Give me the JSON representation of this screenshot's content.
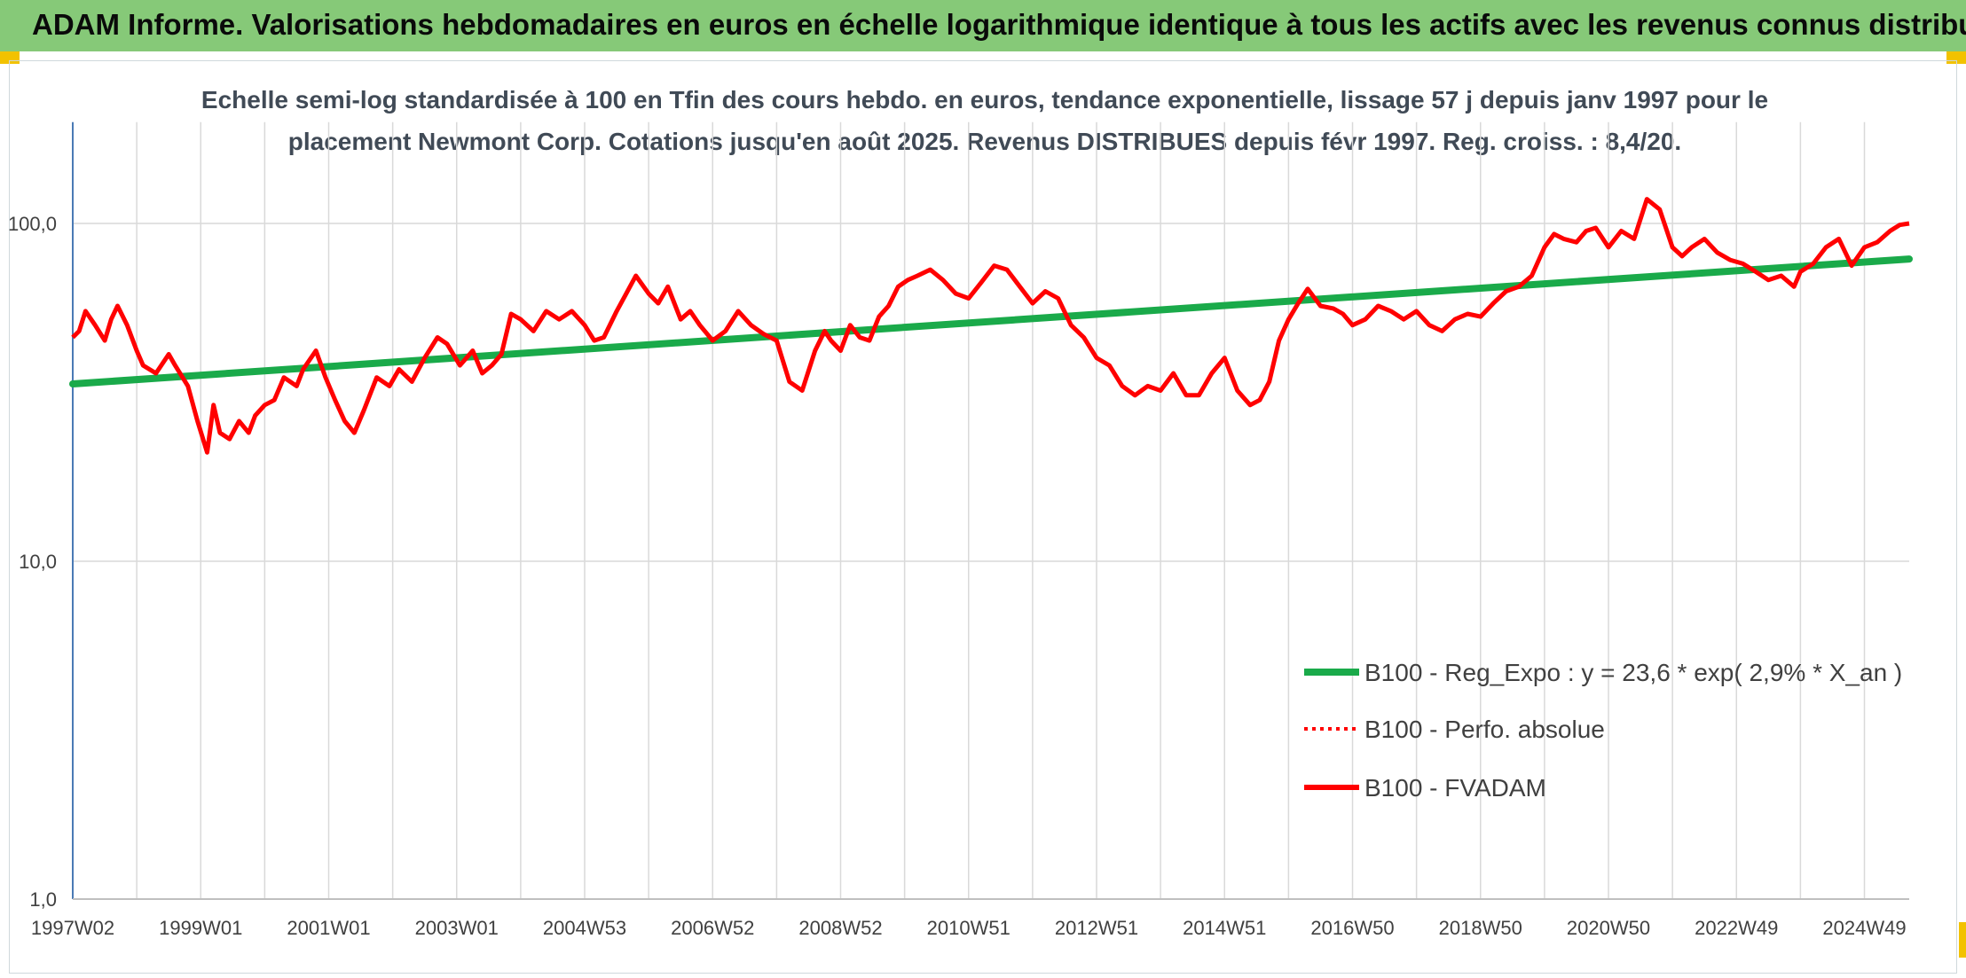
{
  "header": {
    "title": "ADAM Informe. Valorisations hebdomadaires en euros en échelle logarithmique identique à tous les actifs avec les revenus connus distribués"
  },
  "colors": {
    "header_bg": "#86c978",
    "corner_accent": "#f2c200",
    "trend_line": "#1aaa4a",
    "fvadam_line": "#ff0000",
    "perf_line": "#ff0000",
    "grid": "#d9d9d9",
    "axis": "#4a7ab5"
  },
  "chart_data": {
    "type": "line",
    "subtitle_line1": "Echelle semi-log standardisée à 100 en Tfin des cours hebdo. en euros, tendance exponentielle, lissage 57 j depuis janv 1997 pour le",
    "subtitle_line2": "placement Newmont Corp. Cotations jusqu'en août 2025. Revenus DISTRIBUES depuis févr 1997. Reg. croiss. : 8,4/20.",
    "y_scale": "log",
    "ylim": [
      1,
      100
    ],
    "y_ticks": [
      {
        "value": 100,
        "label": "100,0"
      },
      {
        "value": 10,
        "label": "10,0"
      },
      {
        "value": 1,
        "label": "1,0"
      }
    ],
    "xlim": [
      1997.0,
      2025.7
    ],
    "x_ticks": [
      {
        "value": 1997.0,
        "label": "1997W02"
      },
      {
        "value": 1999.0,
        "label": "1999W01"
      },
      {
        "value": 2001.0,
        "label": "2001W01"
      },
      {
        "value": 2003.0,
        "label": "2003W01"
      },
      {
        "value": 2005.0,
        "label": "2004W53"
      },
      {
        "value": 2007.0,
        "label": "2006W52"
      },
      {
        "value": 2009.0,
        "label": "2008W52"
      },
      {
        "value": 2011.0,
        "label": "2010W51"
      },
      {
        "value": 2013.0,
        "label": "2012W51"
      },
      {
        "value": 2015.0,
        "label": "2014W51"
      },
      {
        "value": 2017.0,
        "label": "2016W50"
      },
      {
        "value": 2019.0,
        "label": "2018W50"
      },
      {
        "value": 2021.0,
        "label": "2020W50"
      },
      {
        "value": 2023.0,
        "label": "2022W49"
      },
      {
        "value": 2025.0,
        "label": "2024W49"
      }
    ],
    "grid": true,
    "legend_position": "bottom-right",
    "series": [
      {
        "name": "B100 - Reg_Expo : y = 23,6 * exp( 2,9% *  X_an )",
        "style": "solid-thick",
        "x": [
          1997.0,
          2025.7
        ],
        "y": [
          33.5,
          78.5
        ]
      },
      {
        "name": "B100 - Perfo. absolue",
        "style": "dotted",
        "x": [],
        "y": []
      },
      {
        "name": "B100 - FVADAM",
        "style": "solid",
        "x": [
          1997.0,
          1997.1,
          1997.2,
          1997.35,
          1997.5,
          1997.6,
          1997.7,
          1997.85,
          1998.0,
          1998.1,
          1998.3,
          1998.5,
          1998.6,
          1998.8,
          1998.95,
          1999.1,
          1999.2,
          1999.3,
          1999.45,
          1999.6,
          1999.75,
          1999.85,
          2000.0,
          2000.15,
          2000.3,
          2000.5,
          2000.6,
          2000.8,
          2000.95,
          2001.1,
          2001.25,
          2001.4,
          2001.55,
          2001.75,
          2001.95,
          2002.1,
          2002.3,
          2002.5,
          2002.7,
          2002.85,
          2003.05,
          2003.25,
          2003.4,
          2003.55,
          2003.7,
          2003.85,
          2004.0,
          2004.2,
          2004.4,
          2004.6,
          2004.8,
          2005.0,
          2005.15,
          2005.3,
          2005.5,
          2005.65,
          2005.8,
          2006.0,
          2006.15,
          2006.3,
          2006.5,
          2006.65,
          2006.8,
          2007.0,
          2007.2,
          2007.4,
          2007.6,
          2007.8,
          2008.0,
          2008.2,
          2008.4,
          2008.6,
          2008.75,
          2008.85,
          2009.0,
          2009.15,
          2009.3,
          2009.45,
          2009.6,
          2009.75,
          2009.9,
          2010.05,
          2010.2,
          2010.4,
          2010.6,
          2010.8,
          2011.0,
          2011.2,
          2011.4,
          2011.6,
          2011.8,
          2012.0,
          2012.2,
          2012.4,
          2012.6,
          2012.8,
          2013.0,
          2013.2,
          2013.4,
          2013.6,
          2013.8,
          2014.0,
          2014.2,
          2014.4,
          2014.6,
          2014.8,
          2015.0,
          2015.2,
          2015.4,
          2015.55,
          2015.7,
          2015.85,
          2016.0,
          2016.15,
          2016.3,
          2016.5,
          2016.7,
          2016.85,
          2017.0,
          2017.2,
          2017.4,
          2017.6,
          2017.8,
          2018.0,
          2018.2,
          2018.4,
          2018.6,
          2018.8,
          2019.0,
          2019.2,
          2019.4,
          2019.6,
          2019.8,
          2020.0,
          2020.15,
          2020.3,
          2020.5,
          2020.65,
          2020.8,
          2021.0,
          2021.2,
          2021.4,
          2021.6,
          2021.8,
          2022.0,
          2022.15,
          2022.3,
          2022.5,
          2022.7,
          2022.9,
          2023.1,
          2023.3,
          2023.5,
          2023.7,
          2023.9,
          2024.0,
          2024.2,
          2024.4,
          2024.6,
          2024.8,
          2025.0,
          2025.2,
          2025.4,
          2025.55,
          2025.7
        ],
        "y": [
          46,
          48,
          55,
          50,
          45,
          52,
          57,
          50,
          42,
          38,
          36,
          41,
          38,
          33,
          26,
          21,
          29,
          24,
          23,
          26,
          24,
          27,
          29,
          30,
          35,
          33,
          37,
          42,
          35,
          30,
          26,
          24,
          28,
          35,
          33,
          37,
          34,
          40,
          46,
          44,
          38,
          42,
          36,
          38,
          41,
          54,
          52,
          48,
          55,
          52,
          55,
          50,
          45,
          46,
          55,
          62,
          70,
          62,
          58,
          65,
          52,
          55,
          50,
          45,
          48,
          55,
          50,
          47,
          45,
          34,
          32,
          42,
          48,
          45,
          42,
          50,
          46,
          45,
          53,
          57,
          65,
          68,
          70,
          73,
          68,
          62,
          60,
          67,
          75,
          73,
          65,
          58,
          63,
          60,
          50,
          46,
          40,
          38,
          33,
          31,
          33,
          32,
          36,
          31,
          31,
          36,
          40,
          32,
          29,
          30,
          34,
          45,
          52,
          58,
          64,
          57,
          56,
          54,
          50,
          52,
          57,
          55,
          52,
          55,
          50,
          48,
          52,
          54,
          53,
          58,
          63,
          65,
          70,
          85,
          93,
          90,
          88,
          95,
          97,
          85,
          95,
          90,
          118,
          110,
          85,
          80,
          85,
          90,
          82,
          78,
          76,
          72,
          68,
          70,
          65,
          72,
          76,
          85,
          90,
          75,
          85,
          88,
          95,
          99,
          100
        ]
      }
    ]
  }
}
